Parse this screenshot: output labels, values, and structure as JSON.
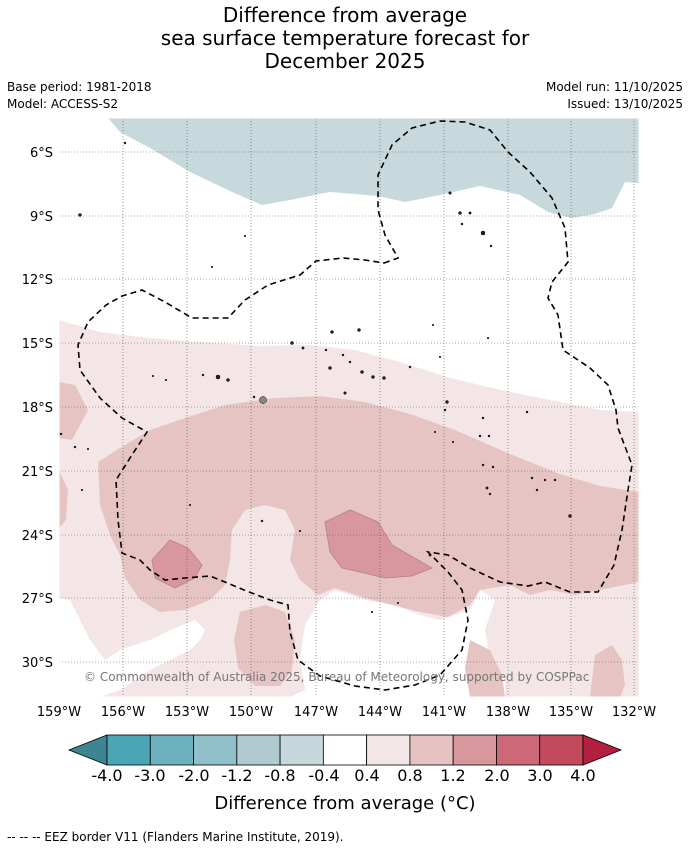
{
  "title": {
    "line1": "Difference from average",
    "line2": "sea surface temperature forecast for",
    "line3": "December 2025"
  },
  "meta": {
    "base_period": "Base period: 1981-2018",
    "model": "Model: ACCESS-S2",
    "model_run": "Model run: 11/10/2025",
    "issued": "Issued: 13/10/2025"
  },
  "map": {
    "lon_labels": [
      "159°W",
      "156°W",
      "153°W",
      "150°W",
      "147°W",
      "144°W",
      "141°W",
      "138°W",
      "135°W",
      "132°W"
    ],
    "lat_labels": [
      "6°S",
      "9°S",
      "12°S",
      "15°S",
      "18°S",
      "21°S",
      "24°S",
      "27°S",
      "30°S"
    ],
    "copyright": "© Commonwealth of Australia 2025, Bureau of Meteorology, supported by COSPPac"
  },
  "colorbar": {
    "labels": [
      "-4.0",
      "-3.0",
      "-2.0",
      "-1.2",
      "-0.8",
      "-0.4",
      "0.4",
      "0.8",
      "1.2",
      "2.0",
      "3.0",
      "4.0"
    ],
    "colors": [
      "#3e8593",
      "#4aa6b5",
      "#6db0bf",
      "#8fbfc9",
      "#b0cacf",
      "#c7d8dc",
      "#ffffff",
      "#f3e6e6",
      "#e6c3c2",
      "#d8969d",
      "#cc6877",
      "#c24a5c",
      "#b3203f"
    ],
    "title": "Difference from average (°C)"
  },
  "footer": "--  --  -- EEZ border V11 (Flanders Marine Institute, 2019)."
}
